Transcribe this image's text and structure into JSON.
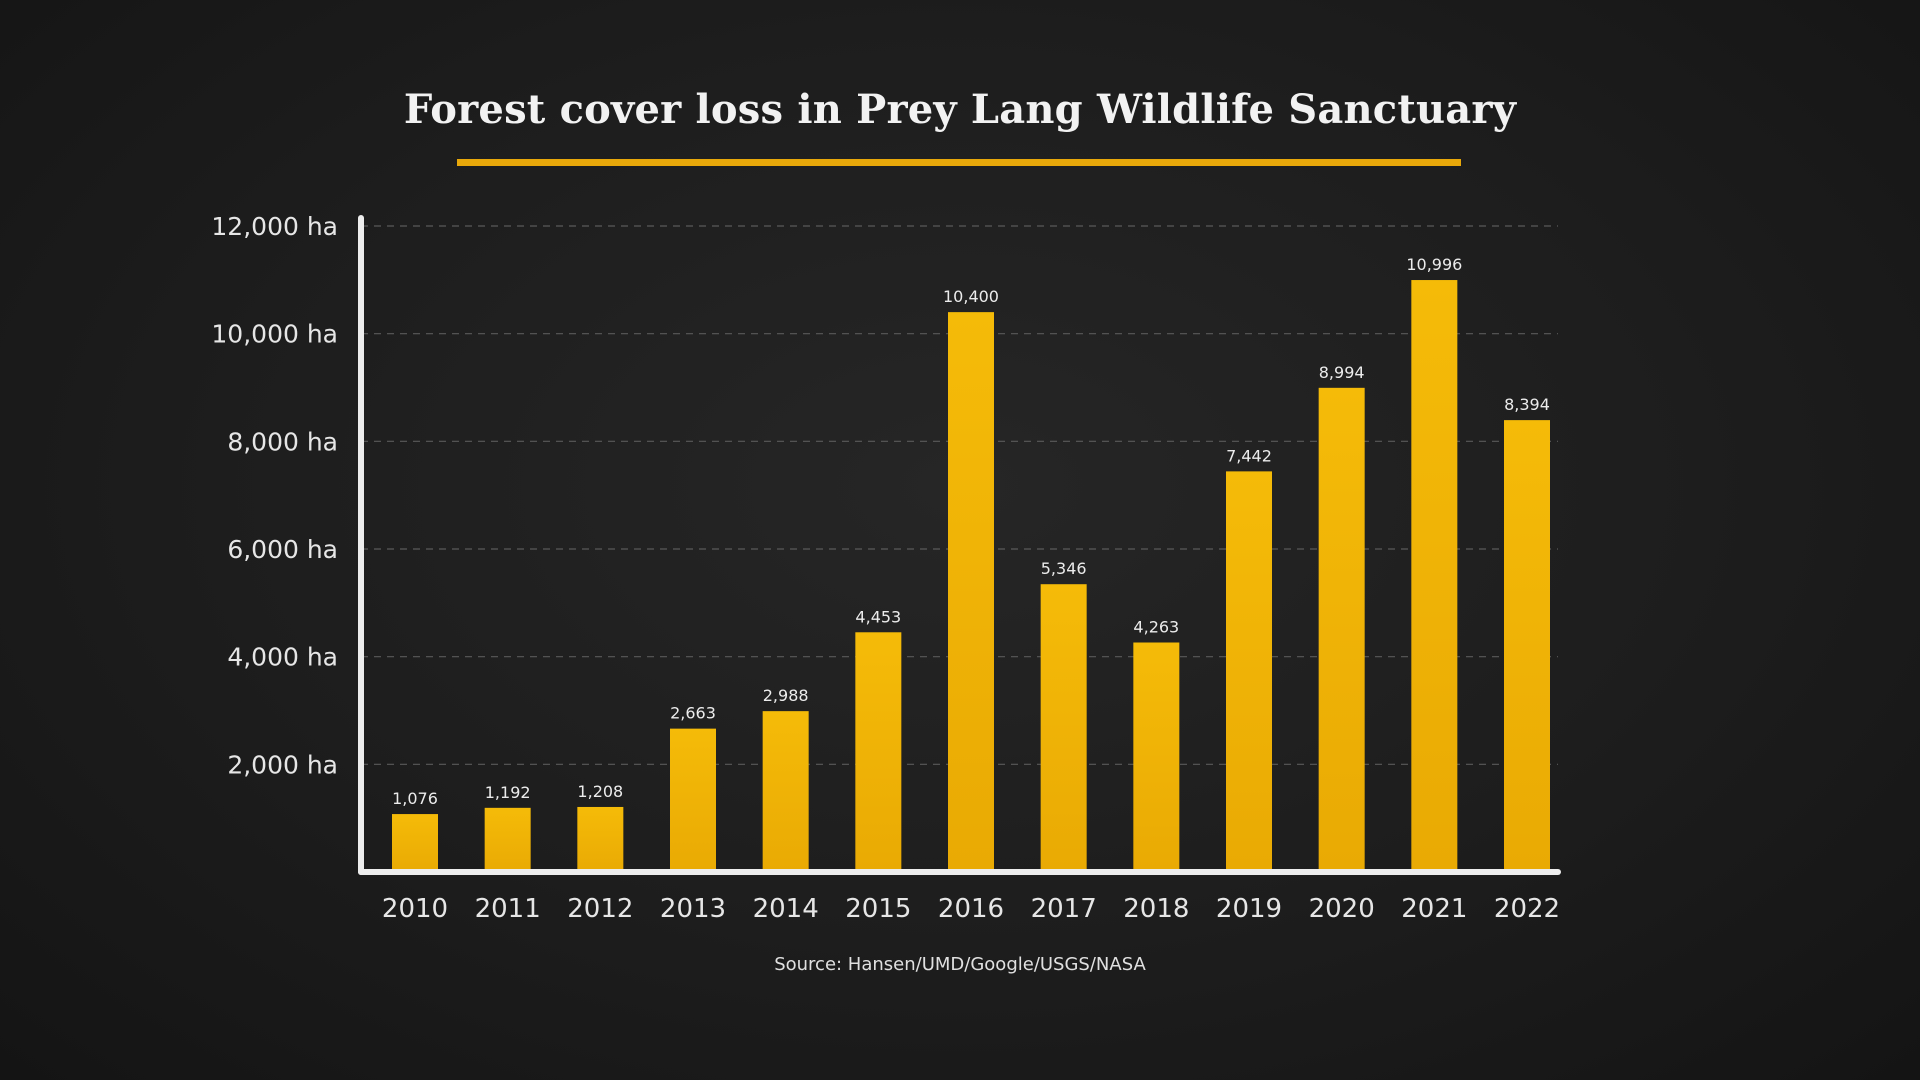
{
  "chart_data": {
    "type": "bar",
    "title": "Forest cover loss in Prey Lang Wildlife Sanctuary",
    "source": "Source: Hansen/UMD/Google/USGS/NASA",
    "categories": [
      "2010",
      "2011",
      "2012",
      "2013",
      "2014",
      "2015",
      "2016",
      "2017",
      "2018",
      "2019",
      "2020",
      "2021",
      "2022"
    ],
    "values": [
      1076,
      1192,
      1208,
      2663,
      2988,
      4453,
      10400,
      5346,
      4263,
      7442,
      8994,
      10996,
      8394
    ],
    "value_labels": [
      "1,076",
      "1,192",
      "1,208",
      "2,663",
      "2,988",
      "4,453",
      "10,400",
      "5,346",
      "4,263",
      "7,442",
      "8,994",
      "10,996",
      "8,394"
    ],
    "y_ticks": [
      2000,
      4000,
      6000,
      8000,
      10000,
      12000
    ],
    "y_tick_labels": [
      "2,000 ha",
      "4,000 ha",
      "6,000 ha",
      "8,000 ha",
      "10,000 ha",
      "12,000 ha"
    ],
    "ylim": [
      0,
      12000
    ],
    "grid": true,
    "bar_color": "#f2b705",
    "title_underline_color": "#e8a80a"
  }
}
